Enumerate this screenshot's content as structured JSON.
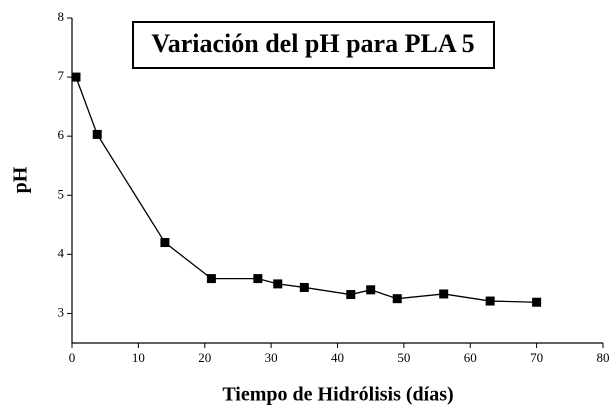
{
  "chart_data": {
    "type": "line",
    "title": "Variación del pH para PLA 5",
    "x_label": "Tiempo de Hidrólisis (días)",
    "y_label": "pH",
    "x": [
      0.6,
      3.8,
      14,
      21,
      28,
      31,
      35,
      42,
      45,
      49,
      56,
      63,
      70
    ],
    "series": [
      {
        "name": "pH",
        "color": "#000000",
        "values": [
          7.0,
          6.03,
          4.2,
          3.59,
          3.59,
          3.5,
          3.44,
          3.32,
          3.4,
          3.25,
          3.33,
          3.21,
          3.19
        ]
      }
    ],
    "xlim": [
      0,
      80
    ],
    "xticks": [
      0,
      10,
      20,
      30,
      40,
      50,
      60,
      70,
      80
    ],
    "ylim": [
      2.5,
      8
    ],
    "yticks": [
      3,
      4,
      5,
      6,
      7,
      8
    ],
    "grid": false
  }
}
